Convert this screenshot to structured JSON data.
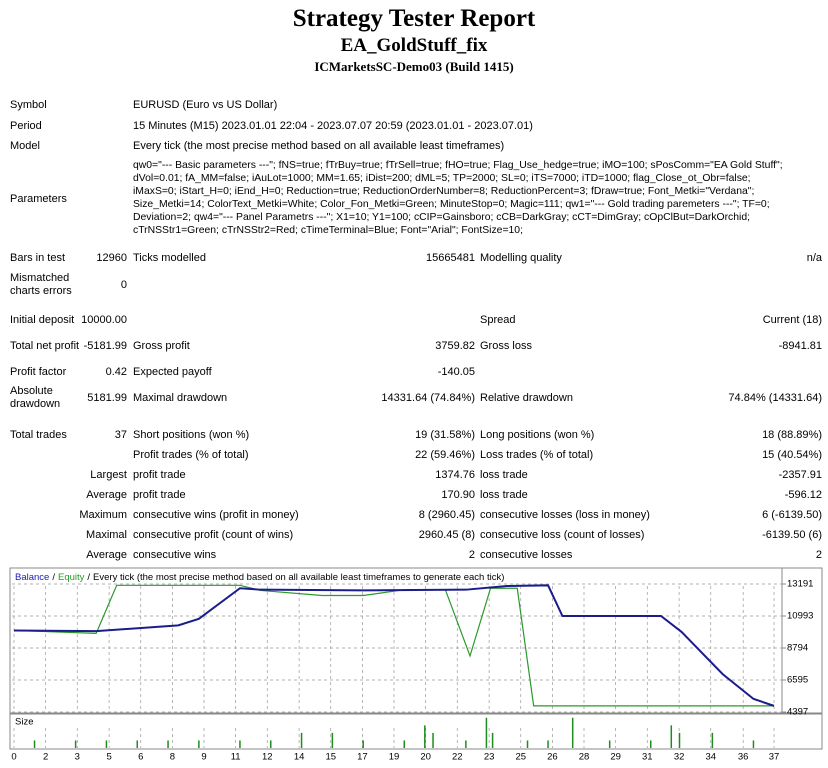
{
  "header": {
    "title": "Strategy Tester Report",
    "subtitle": "EA_GoldStuff_fix",
    "server": "ICMarketsSC-Demo03 (Build 1415)"
  },
  "info": [
    {
      "label": "Symbol",
      "value": "EURUSD (Euro vs US Dollar)"
    },
    {
      "label": "Period",
      "value": "15 Minutes (M15) 2023.01.01 22:04 - 2023.07.07 20:59 (2023.01.01 - 2023.07.01)"
    },
    {
      "label": "Model",
      "value": "Every tick (the most precise method based on all available least timeframes)"
    }
  ],
  "parameters": {
    "label": "Parameters",
    "lines": [
      "qw0=\"--- Basic parameters ---\"; fNS=true; fTrBuy=true; fTrSell=true; fHO=true; Flag_Use_hedge=true; iMO=100; sPosComm=\"EA Gold Stuff\";",
      "dVol=0.01; fA_MM=false; iAuLot=1000; MM=1.65; iDist=200; dML=5; TP=2000; SL=0; iTS=7000; iTD=1000; flag_Close_ot_Obr=false;",
      "iMaxS=0; iStart_H=0; iEnd_H=0; Reduction=true; ReductionOrderNumber=8; ReductionPercent=3; fDraw=true; Font_Metki=\"Verdana\";",
      "Size_Metki=14; ColorText_Metki=White; Color_Fon_Metki=Green; MinuteStop=0; Magic=111; qw1=\"--- Gold trading paremeters ---\"; TF=0;",
      "Deviation=2; qw4=\"--- Panel Parametrs ---\"; X1=10; Y1=100; cCIP=Gainsboro; cCB=DarkGray; cCT=DimGray; cOpClBut=DarkOrchid;",
      "cTrNSStr1=Green; cTrNSStr2=Red; cTimeTerminal=Blue; Font=\"Arial\"; FontSize=10;"
    ]
  },
  "stats": [
    [
      "Bars in test",
      "12960",
      "Ticks modelled",
      "15665481",
      "Modelling quality",
      "n/a"
    ],
    [
      "Mismatched charts errors",
      "0",
      null,
      null,
      null,
      null
    ],
    [
      "Initial deposit",
      "10000.00",
      null,
      null,
      "Spread",
      "Current (18)"
    ],
    [
      "Total net profit",
      "-5181.99",
      "Gross profit",
      "3759.82",
      "Gross loss",
      "-8941.81"
    ],
    [
      "Profit factor",
      "0.42",
      "Expected payoff",
      "-140.05",
      null,
      null
    ],
    [
      "Absolute drawdown",
      "5181.99",
      "Maximal drawdown",
      "14331.64 (74.84%)",
      "Relative drawdown",
      "74.84% (14331.64)"
    ],
    [
      "Total trades",
      "37",
      "Short positions (won %)",
      "19 (31.58%)",
      "Long positions (won %)",
      "18 (88.89%)"
    ],
    [
      null,
      null,
      "Profit trades (% of total)",
      "22 (59.46%)",
      "Loss trades (% of total)",
      "15 (40.54%)"
    ],
    [
      null,
      "Largest",
      "profit trade",
      "1374.76",
      "loss trade",
      "-2357.91"
    ],
    [
      null,
      "Average",
      "profit trade",
      "170.90",
      "loss trade",
      "-596.12"
    ],
    [
      null,
      "Maximum",
      "consecutive wins (profit in money)",
      "8 (2960.45)",
      "consecutive losses (loss in money)",
      "6 (-6139.50)"
    ],
    [
      null,
      "Maximal",
      "consecutive profit (count of wins)",
      "2960.45 (8)",
      "consecutive loss (count of losses)",
      "-6139.50 (6)"
    ],
    [
      null,
      "Average",
      "consecutive wins",
      "2",
      "consecutive losses",
      "2"
    ]
  ],
  "chart_data": {
    "type": "line",
    "separator": "/",
    "legend_note": "Every tick (the most precise method based on all available least timeframes to generate each tick)",
    "series": [
      {
        "name": "Balance",
        "color": "#1c1c8c",
        "x": [
          0,
          4,
          8,
          9,
          11,
          12,
          17,
          22,
          24,
          26,
          26.7,
          31.5,
          32.5,
          34.5,
          36,
          37
        ],
        "values": [
          10000,
          9950,
          10350,
          10800,
          12900,
          12800,
          12750,
          12800,
          13050,
          13100,
          10993,
          10993,
          9900,
          7000,
          5300,
          4818
        ]
      },
      {
        "name": "Equity",
        "color": "#2a9a2a",
        "x": [
          0,
          4,
          5,
          11,
          12,
          15,
          17,
          19,
          21,
          22.2,
          23.2,
          24.5,
          25.3,
          37
        ],
        "values": [
          10000,
          9800,
          13100,
          13100,
          12750,
          12400,
          12400,
          12800,
          12800,
          8250,
          12900,
          12900,
          4818,
          4818
        ]
      }
    ],
    "xlim": [
      0,
      37
    ],
    "xticks": [
      0,
      {
        "value": 1.54,
        "label": "2"
      },
      {
        "value": 3.08,
        "label": "3"
      },
      {
        "value": 4.63,
        "label": "5"
      },
      {
        "value": 6.17,
        "label": "6"
      },
      {
        "value": 7.71,
        "label": "8"
      },
      {
        "value": 9.25,
        "label": "9"
      },
      {
        "value": 10.79,
        "label": "11"
      },
      {
        "value": 12.33,
        "label": "12"
      },
      {
        "value": 13.88,
        "label": "14"
      },
      {
        "value": 15.42,
        "label": "15"
      },
      {
        "value": 16.96,
        "label": "17"
      },
      {
        "value": 18.5,
        "label": "19"
      },
      {
        "value": 20.04,
        "label": "20"
      },
      {
        "value": 21.58,
        "label": "22"
      },
      {
        "value": 23.13,
        "label": "23"
      },
      {
        "value": 24.67,
        "label": "25"
      },
      {
        "value": 26.21,
        "label": "26"
      },
      {
        "value": 27.75,
        "label": "28"
      },
      {
        "value": 29.29,
        "label": "29"
      },
      {
        "value": 30.83,
        "label": "31"
      },
      {
        "value": 32.38,
        "label": "32"
      },
      {
        "value": 33.92,
        "label": "34"
      },
      {
        "value": 35.5,
        "label": "36"
      },
      37
    ],
    "ylim": [
      4397,
      14015
    ],
    "yticks": [
      13191,
      10993,
      8794,
      6595,
      4397
    ],
    "grid": true,
    "size": {
      "label": "Size",
      "color": "#1e8c1e",
      "ylim": [
        0,
        4.5
      ],
      "x": [
        1,
        3,
        4.5,
        6,
        7.5,
        9,
        11,
        12.5,
        14,
        15.5,
        17,
        19,
        20,
        20.4,
        22,
        23,
        23.3,
        25,
        26,
        27.2,
        29,
        31,
        32,
        32.4,
        34,
        36
      ],
      "values": [
        1,
        1,
        1,
        1,
        1,
        1,
        1,
        1,
        2,
        2,
        1,
        1,
        3,
        2,
        1,
        4,
        2,
        1,
        1,
        4,
        1,
        1,
        3,
        2,
        2,
        1
      ]
    }
  }
}
